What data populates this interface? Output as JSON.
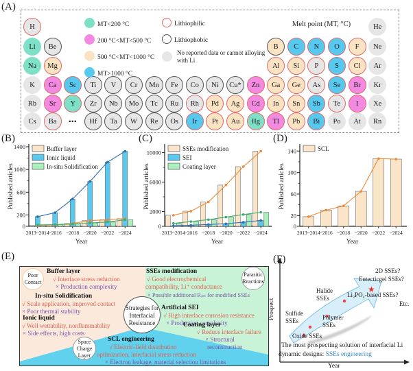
{
  "colors": {
    "mint": "#7ee0c6",
    "pink": "#f489e2",
    "peach": "#fae3c3",
    "blue": "#57c8ee",
    "grey": "#e6e6e6",
    "ring_lithiophilic": "#e06a6a",
    "ring_lithiophobic": "#555555",
    "panelE_peach_bg": "#fbeadb",
    "panelE_green_bg": "#c8f3d6",
    "panelE_cyan_bg": "#60d2ee",
    "pro_text": "#e0604e",
    "con_text": "#7a52a8",
    "blue_link": "#2e86c8",
    "band_fill": "#d8eef9",
    "band_stroke": "#7cc2e2",
    "dot_red": "#e64545"
  },
  "panelA": {
    "label": "(A)",
    "legend": {
      "title": "Melt point (MT, °C)",
      "mt_items": [
        {
          "fill": "mint",
          "label": "MT<200 °C"
        },
        {
          "fill": "pink",
          "label": "200 °C<MT<500 °C"
        },
        {
          "fill": "peach",
          "label": "500 °C<MT<1000 °C"
        },
        {
          "fill": "blue",
          "label": "MT>1000 °C"
        }
      ],
      "ring_items": [
        {
          "ring": "red",
          "label": "Lithiophilic"
        },
        {
          "ring": "dark",
          "label": "Lithiophobic"
        }
      ],
      "grey_item": {
        "label_line1": "No reported data or cannot alloying",
        "label_line2": "with Li"
      }
    },
    "elements": [
      {
        "sym": "H",
        "row": 1,
        "col": 1,
        "fill": "grey",
        "ring": "red"
      },
      {
        "sym": "He",
        "row": 1,
        "col": 18,
        "fill": "grey",
        "ring": "none"
      },
      {
        "sym": "Li",
        "row": 2,
        "col": 1,
        "fill": "mint",
        "ring": "none"
      },
      {
        "sym": "Be",
        "row": 2,
        "col": 2,
        "fill": "grey",
        "ring": "dark"
      },
      {
        "sym": "B",
        "row": 2,
        "col": 13,
        "fill": "peach",
        "ring": "dark"
      },
      {
        "sym": "C",
        "row": 2,
        "col": 14,
        "fill": "blue",
        "ring": "red"
      },
      {
        "sym": "N",
        "row": 2,
        "col": 15,
        "fill": "blue",
        "ring": "red"
      },
      {
        "sym": "O",
        "row": 2,
        "col": 16,
        "fill": "blue",
        "ring": "red"
      },
      {
        "sym": "F",
        "row": 2,
        "col": 17,
        "fill": "peach",
        "ring": "red"
      },
      {
        "sym": "Ne",
        "row": 2,
        "col": 18,
        "fill": "grey",
        "ring": "none"
      },
      {
        "sym": "Na",
        "row": 3,
        "col": 1,
        "fill": "mint",
        "ring": "none"
      },
      {
        "sym": "Mg",
        "row": 3,
        "col": 2,
        "fill": "peach",
        "ring": "red"
      },
      {
        "sym": "Al",
        "row": 3,
        "col": 13,
        "fill": "peach",
        "ring": "red"
      },
      {
        "sym": "Si",
        "row": 3,
        "col": 14,
        "fill": "peach",
        "ring": "red"
      },
      {
        "sym": "P",
        "row": 3,
        "col": 15,
        "fill": "grey",
        "ring": "red"
      },
      {
        "sym": "S",
        "row": 3,
        "col": 16,
        "fill": "blue",
        "ring": "red"
      },
      {
        "sym": "Cl",
        "row": 3,
        "col": 17,
        "fill": "peach",
        "ring": "red"
      },
      {
        "sym": "Ar",
        "row": 3,
        "col": 18,
        "fill": "grey",
        "ring": "none"
      },
      {
        "sym": "K",
        "row": 4,
        "col": 1,
        "fill": "grey",
        "ring": "none"
      },
      {
        "sym": "Ca",
        "row": 4,
        "col": 2,
        "fill": "pink",
        "ring": "red"
      },
      {
        "sym": "Sc",
        "row": 4,
        "col": 3,
        "fill": "blue",
        "ring": "red"
      },
      {
        "sym": "Ti",
        "row": 4,
        "col": 4,
        "fill": "grey",
        "ring": "dark"
      },
      {
        "sym": "V",
        "row": 4,
        "col": 5,
        "fill": "grey",
        "ring": "dark"
      },
      {
        "sym": "Cr",
        "row": 4,
        "col": 6,
        "fill": "grey",
        "ring": "dark"
      },
      {
        "sym": "Mn",
        "row": 4,
        "col": 7,
        "fill": "grey",
        "ring": "dark"
      },
      {
        "sym": "Fe",
        "row": 4,
        "col": 8,
        "fill": "grey",
        "ring": "dark"
      },
      {
        "sym": "Co",
        "row": 4,
        "col": 9,
        "fill": "grey",
        "ring": "dark"
      },
      {
        "sym": "Ni",
        "row": 4,
        "col": 10,
        "fill": "grey",
        "ring": "dark"
      },
      {
        "sym": "Cu*",
        "row": 4,
        "col": 11,
        "fill": "grey",
        "ring": "dark"
      },
      {
        "sym": "Zn",
        "row": 4,
        "col": 12,
        "fill": "pink",
        "ring": "red"
      },
      {
        "sym": "Ga",
        "row": 4,
        "col": 13,
        "fill": "peach",
        "ring": "red"
      },
      {
        "sym": "Ge",
        "row": 4,
        "col": 14,
        "fill": "peach",
        "ring": "red"
      },
      {
        "sym": "As",
        "row": 4,
        "col": 15,
        "fill": "grey",
        "ring": "red"
      },
      {
        "sym": "Se",
        "row": 4,
        "col": 16,
        "fill": "blue",
        "ring": "red"
      },
      {
        "sym": "Br",
        "row": 4,
        "col": 17,
        "fill": "pink",
        "ring": "red"
      },
      {
        "sym": "Kr",
        "row": 4,
        "col": 18,
        "fill": "grey",
        "ring": "none"
      },
      {
        "sym": "Rb",
        "row": 5,
        "col": 1,
        "fill": "grey",
        "ring": "none"
      },
      {
        "sym": "Sr",
        "row": 5,
        "col": 2,
        "fill": "pink",
        "ring": "red"
      },
      {
        "sym": "Y",
        "row": 5,
        "col": 3,
        "fill": "mint",
        "ring": "red"
      },
      {
        "sym": "Zr",
        "row": 5,
        "col": 4,
        "fill": "grey",
        "ring": "dark"
      },
      {
        "sym": "Nb",
        "row": 5,
        "col": 5,
        "fill": "grey",
        "ring": "dark"
      },
      {
        "sym": "Mo",
        "row": 5,
        "col": 6,
        "fill": "grey",
        "ring": "dark"
      },
      {
        "sym": "Tc",
        "row": 5,
        "col": 7,
        "fill": "grey",
        "ring": "dark"
      },
      {
        "sym": "Ru",
        "row": 5,
        "col": 8,
        "fill": "grey",
        "ring": "dark"
      },
      {
        "sym": "Rh",
        "row": 5,
        "col": 9,
        "fill": "grey",
        "ring": "red"
      },
      {
        "sym": "Pd",
        "row": 5,
        "col": 10,
        "fill": "peach",
        "ring": "red"
      },
      {
        "sym": "Ag",
        "row": 5,
        "col": 11,
        "fill": "peach",
        "ring": "red"
      },
      {
        "sym": "Cd",
        "row": 5,
        "col": 12,
        "fill": "pink",
        "ring": "red"
      },
      {
        "sym": "In",
        "row": 5,
        "col": 13,
        "fill": "peach",
        "ring": "red"
      },
      {
        "sym": "Sn",
        "row": 5,
        "col": 14,
        "fill": "peach",
        "ring": "red"
      },
      {
        "sym": "Sb",
        "row": 5,
        "col": 15,
        "fill": "blue",
        "ring": "red"
      },
      {
        "sym": "Te",
        "row": 5,
        "col": 16,
        "fill": "grey",
        "ring": "red"
      },
      {
        "sym": "I",
        "row": 5,
        "col": 17,
        "fill": "pink",
        "ring": "red"
      },
      {
        "sym": "Xe",
        "row": 5,
        "col": 18,
        "fill": "grey",
        "ring": "none"
      },
      {
        "sym": "Cs",
        "row": 6,
        "col": 1,
        "fill": "grey",
        "ring": "none"
      },
      {
        "sym": "Ba",
        "row": 6,
        "col": 2,
        "fill": "grey",
        "ring": "red"
      },
      {
        "sym": "⋯",
        "row": 6,
        "col": 3,
        "fill": "none",
        "ring": "none"
      },
      {
        "sym": "Hf",
        "row": 6,
        "col": 4,
        "fill": "grey",
        "ring": "dark"
      },
      {
        "sym": "Ta",
        "row": 6,
        "col": 5,
        "fill": "grey",
        "ring": "dark"
      },
      {
        "sym": "W",
        "row": 6,
        "col": 6,
        "fill": "grey",
        "ring": "dark"
      },
      {
        "sym": "Re",
        "row": 6,
        "col": 7,
        "fill": "grey",
        "ring": "dark"
      },
      {
        "sym": "Os",
        "row": 6,
        "col": 8,
        "fill": "grey",
        "ring": "dark"
      },
      {
        "sym": "Ir",
        "row": 6,
        "col": 9,
        "fill": "blue",
        "ring": "red"
      },
      {
        "sym": "Pt",
        "row": 6,
        "col": 10,
        "fill": "peach",
        "ring": "red"
      },
      {
        "sym": "Au",
        "row": 6,
        "col": 11,
        "fill": "peach",
        "ring": "red"
      },
      {
        "sym": "Hg",
        "row": 6,
        "col": 12,
        "fill": "mint",
        "ring": "red"
      },
      {
        "sym": "Tl",
        "row": 6,
        "col": 13,
        "fill": "pink",
        "ring": "red"
      },
      {
        "sym": "Pb",
        "row": 6,
        "col": 14,
        "fill": "peach",
        "ring": "red"
      },
      {
        "sym": "Bi",
        "row": 6,
        "col": 15,
        "fill": "blue",
        "ring": "red"
      },
      {
        "sym": "Po",
        "row": 6,
        "col": 16,
        "fill": "grey",
        "ring": "none"
      },
      {
        "sym": "At",
        "row": 6,
        "col": 17,
        "fill": "grey",
        "ring": "none"
      },
      {
        "sym": "Rn",
        "row": 6,
        "col": 18,
        "fill": "grey",
        "ring": "none"
      }
    ]
  },
  "chart_data": [
    {
      "panel_label": "(B)",
      "type": "bar",
      "title": "",
      "xlabel": "Year",
      "ylabel": "Published articles",
      "categories": [
        "2013~2014",
        "~2016",
        "~2018",
        "~2020",
        "~2022",
        "~2024"
      ],
      "yticks": [
        0,
        200,
        600,
        1000,
        1400
      ],
      "yminor": [
        400,
        800,
        1200
      ],
      "ylim": [
        0,
        1400
      ],
      "legend_position": "top-left",
      "grid": false,
      "series": [
        {
          "name": "Buffer layer",
          "values": [
            15,
            25,
            50,
            100,
            115,
            135
          ],
          "fill": "#fbe5c9",
          "line": "#ed8a3a"
        },
        {
          "name": "Ionic liquid",
          "values": [
            170,
            240,
            480,
            790,
            1130,
            1320
          ],
          "fill": "#5bc9ee",
          "line": "#2e6fae"
        },
        {
          "name": "In-situ Solidification",
          "values": [
            25,
            30,
            40,
            60,
            75,
            115
          ],
          "fill": "#a9f0bc",
          "line": "#3fae68"
        }
      ]
    },
    {
      "panel_label": "(C)",
      "type": "bar",
      "title": "",
      "xlabel": "Year",
      "ylabel": "Published articles",
      "categories": [
        "2013~2014",
        "~2016",
        "~2018",
        "~2020",
        "~2022",
        "~2024"
      ],
      "yticks": [
        0,
        2000,
        6000,
        10000
      ],
      "yminor": [
        4000,
        8000
      ],
      "ylim": [
        0,
        10800
      ],
      "legend_position": "top-left",
      "grid": false,
      "series": [
        {
          "name": "SSEs modification",
          "values": [
            1500,
            2050,
            3300,
            5600,
            8100,
            10200
          ],
          "fill": "#fbe5c9",
          "line": "#ed8a3a"
        },
        {
          "name": "SEI",
          "values": [
            80,
            150,
            250,
            350,
            550,
            800
          ],
          "fill": "#5bc9ee",
          "line": "#2e6fae"
        },
        {
          "name": "Coating layer",
          "values": [
            400,
            650,
            900,
            1250,
            1600,
            1900
          ],
          "fill": "#a9f0bc",
          "line": "#3fae68"
        }
      ]
    },
    {
      "panel_label": "(D)",
      "type": "bar",
      "title": "",
      "xlabel": "Year",
      "ylabel": "Published articles",
      "categories": [
        "2013~2014",
        "~2016",
        "~2018",
        "~2020",
        "~2022",
        "~2024"
      ],
      "yticks": [
        0,
        20,
        60,
        100,
        140
      ],
      "yminor": [
        40,
        80,
        120
      ],
      "ylim": [
        0,
        148
      ],
      "legend_position": "top-left",
      "grid": false,
      "series": [
        {
          "name": "SCL",
          "values": [
            18,
            30,
            38,
            65,
            126,
            125
          ],
          "fill": "#fbe5c9",
          "line": "#ed8a3a"
        }
      ]
    }
  ],
  "panelE": {
    "label": "(E)",
    "center_circle": [
      "Strategies for",
      "Interfacial",
      "Resistance"
    ],
    "poor_circle": [
      "Poor",
      "Contact"
    ],
    "parasitic_circle": [
      "Parasitic",
      "Reactions"
    ],
    "space_circle": [
      "Space",
      "Charge",
      "Layer"
    ],
    "sections": {
      "buffer": {
        "heading": "Buffer layer",
        "pros": [
          "√ Interface stress reduction"
        ],
        "cons": [
          "× Production complexity"
        ]
      },
      "insitu": {
        "heading": "In-situ Solidification",
        "pros": [
          "√ Scale application, improved contact"
        ],
        "cons": [
          "× Poor thermal stability"
        ]
      },
      "ionic": {
        "heading": "Ionic liquid",
        "pros": [
          "√ Well wettability, nonflammability"
        ],
        "cons": [
          "× Side effects, high costs"
        ]
      },
      "sses": {
        "heading": "SSEs modification",
        "pros": [
          "√ Good electrochemical",
          "compatibility, Li⁺ conductance"
        ],
        "cons": [
          "× Possible additional Rᵢₙₜ for modified SSEs"
        ]
      },
      "sei": {
        "heading": "Artificial SEI",
        "pros": [
          "√ High interface corrosion resistance"
        ],
        "cons": [
          "× Production complexity"
        ]
      },
      "coating": {
        "heading": "Coating layer",
        "pros": [
          "√ Reduce interface failure"
        ],
        "cons": [
          "× Structural",
          "reconstruction"
        ]
      },
      "scl": {
        "heading": "SCL engineering",
        "pros": [
          "√ Electric-field distribution",
          "optimization, interfacial stress reduction"
        ],
        "cons": [
          "× Electron leakage, material selection limitations"
        ]
      }
    }
  },
  "panelF": {
    "label": "(F)",
    "ylabel": "Prospect",
    "xlabel": "Year",
    "labels": {
      "oxide": "Oxide SSEs",
      "sulfide": "Sulfide SSEs",
      "polymer": "Polymer SSEs",
      "halide": "Halide SSEs",
      "li3po4": "Li₃PO₄-based SSEs?",
      "two_d": "2D SSEs?",
      "eutecticgel": "Eutecticgel SSEs?",
      "etc": "Etc."
    },
    "caption": {
      "line1": "The most prospecting solution of interfacial Li",
      "line2_black": "dynamic designs: ",
      "line2_blue": "SSEs engineering"
    }
  }
}
